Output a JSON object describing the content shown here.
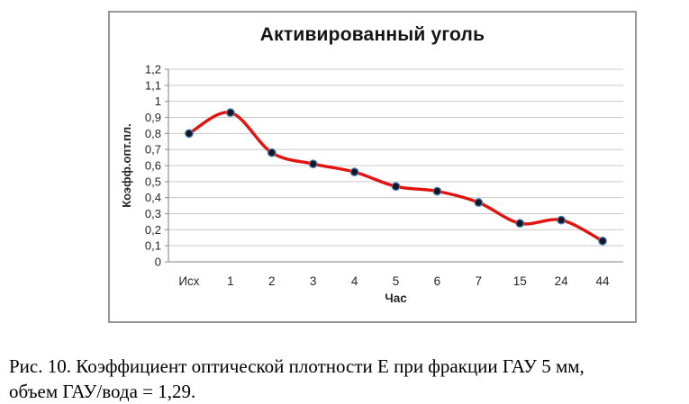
{
  "chart_data": {
    "type": "line",
    "title": "Активированный уголь",
    "categories": [
      "Исх",
      "1",
      "2",
      "3",
      "4",
      "5",
      "6",
      "7",
      "15",
      "24",
      "44"
    ],
    "values": [
      0.8,
      0.93,
      0.68,
      0.61,
      0.56,
      0.47,
      0.44,
      0.37,
      0.24,
      0.26,
      0.13
    ],
    "series_name": "Коэфф.опт.пл.",
    "xlabel": "Час",
    "ylabel": "Коэфф.опт.пл.",
    "ylim": [
      0,
      1.2
    ],
    "ytick_step": 0.1,
    "ytick_labels": [
      "0",
      "0,1",
      "0,2",
      "0,3",
      "0,4",
      "0,5",
      "0,6",
      "0,7",
      "0,8",
      "0,9",
      "1",
      "1,1",
      "1,2"
    ],
    "grid": true,
    "legend": "none",
    "smooth": true,
    "line_color": "#e3140f",
    "marker_fill": "#121826",
    "marker_edge": "#4a7ab5",
    "grid_color": "#c9c9c9",
    "axis_color": "#9b9b9b",
    "text_color": "#262626"
  },
  "caption": {
    "line1": "Рис. 10. Коэффициент оптической плотности Е при фракции ГАУ 5 мм,",
    "line2": "объем ГАУ/вода = 1,29."
  }
}
